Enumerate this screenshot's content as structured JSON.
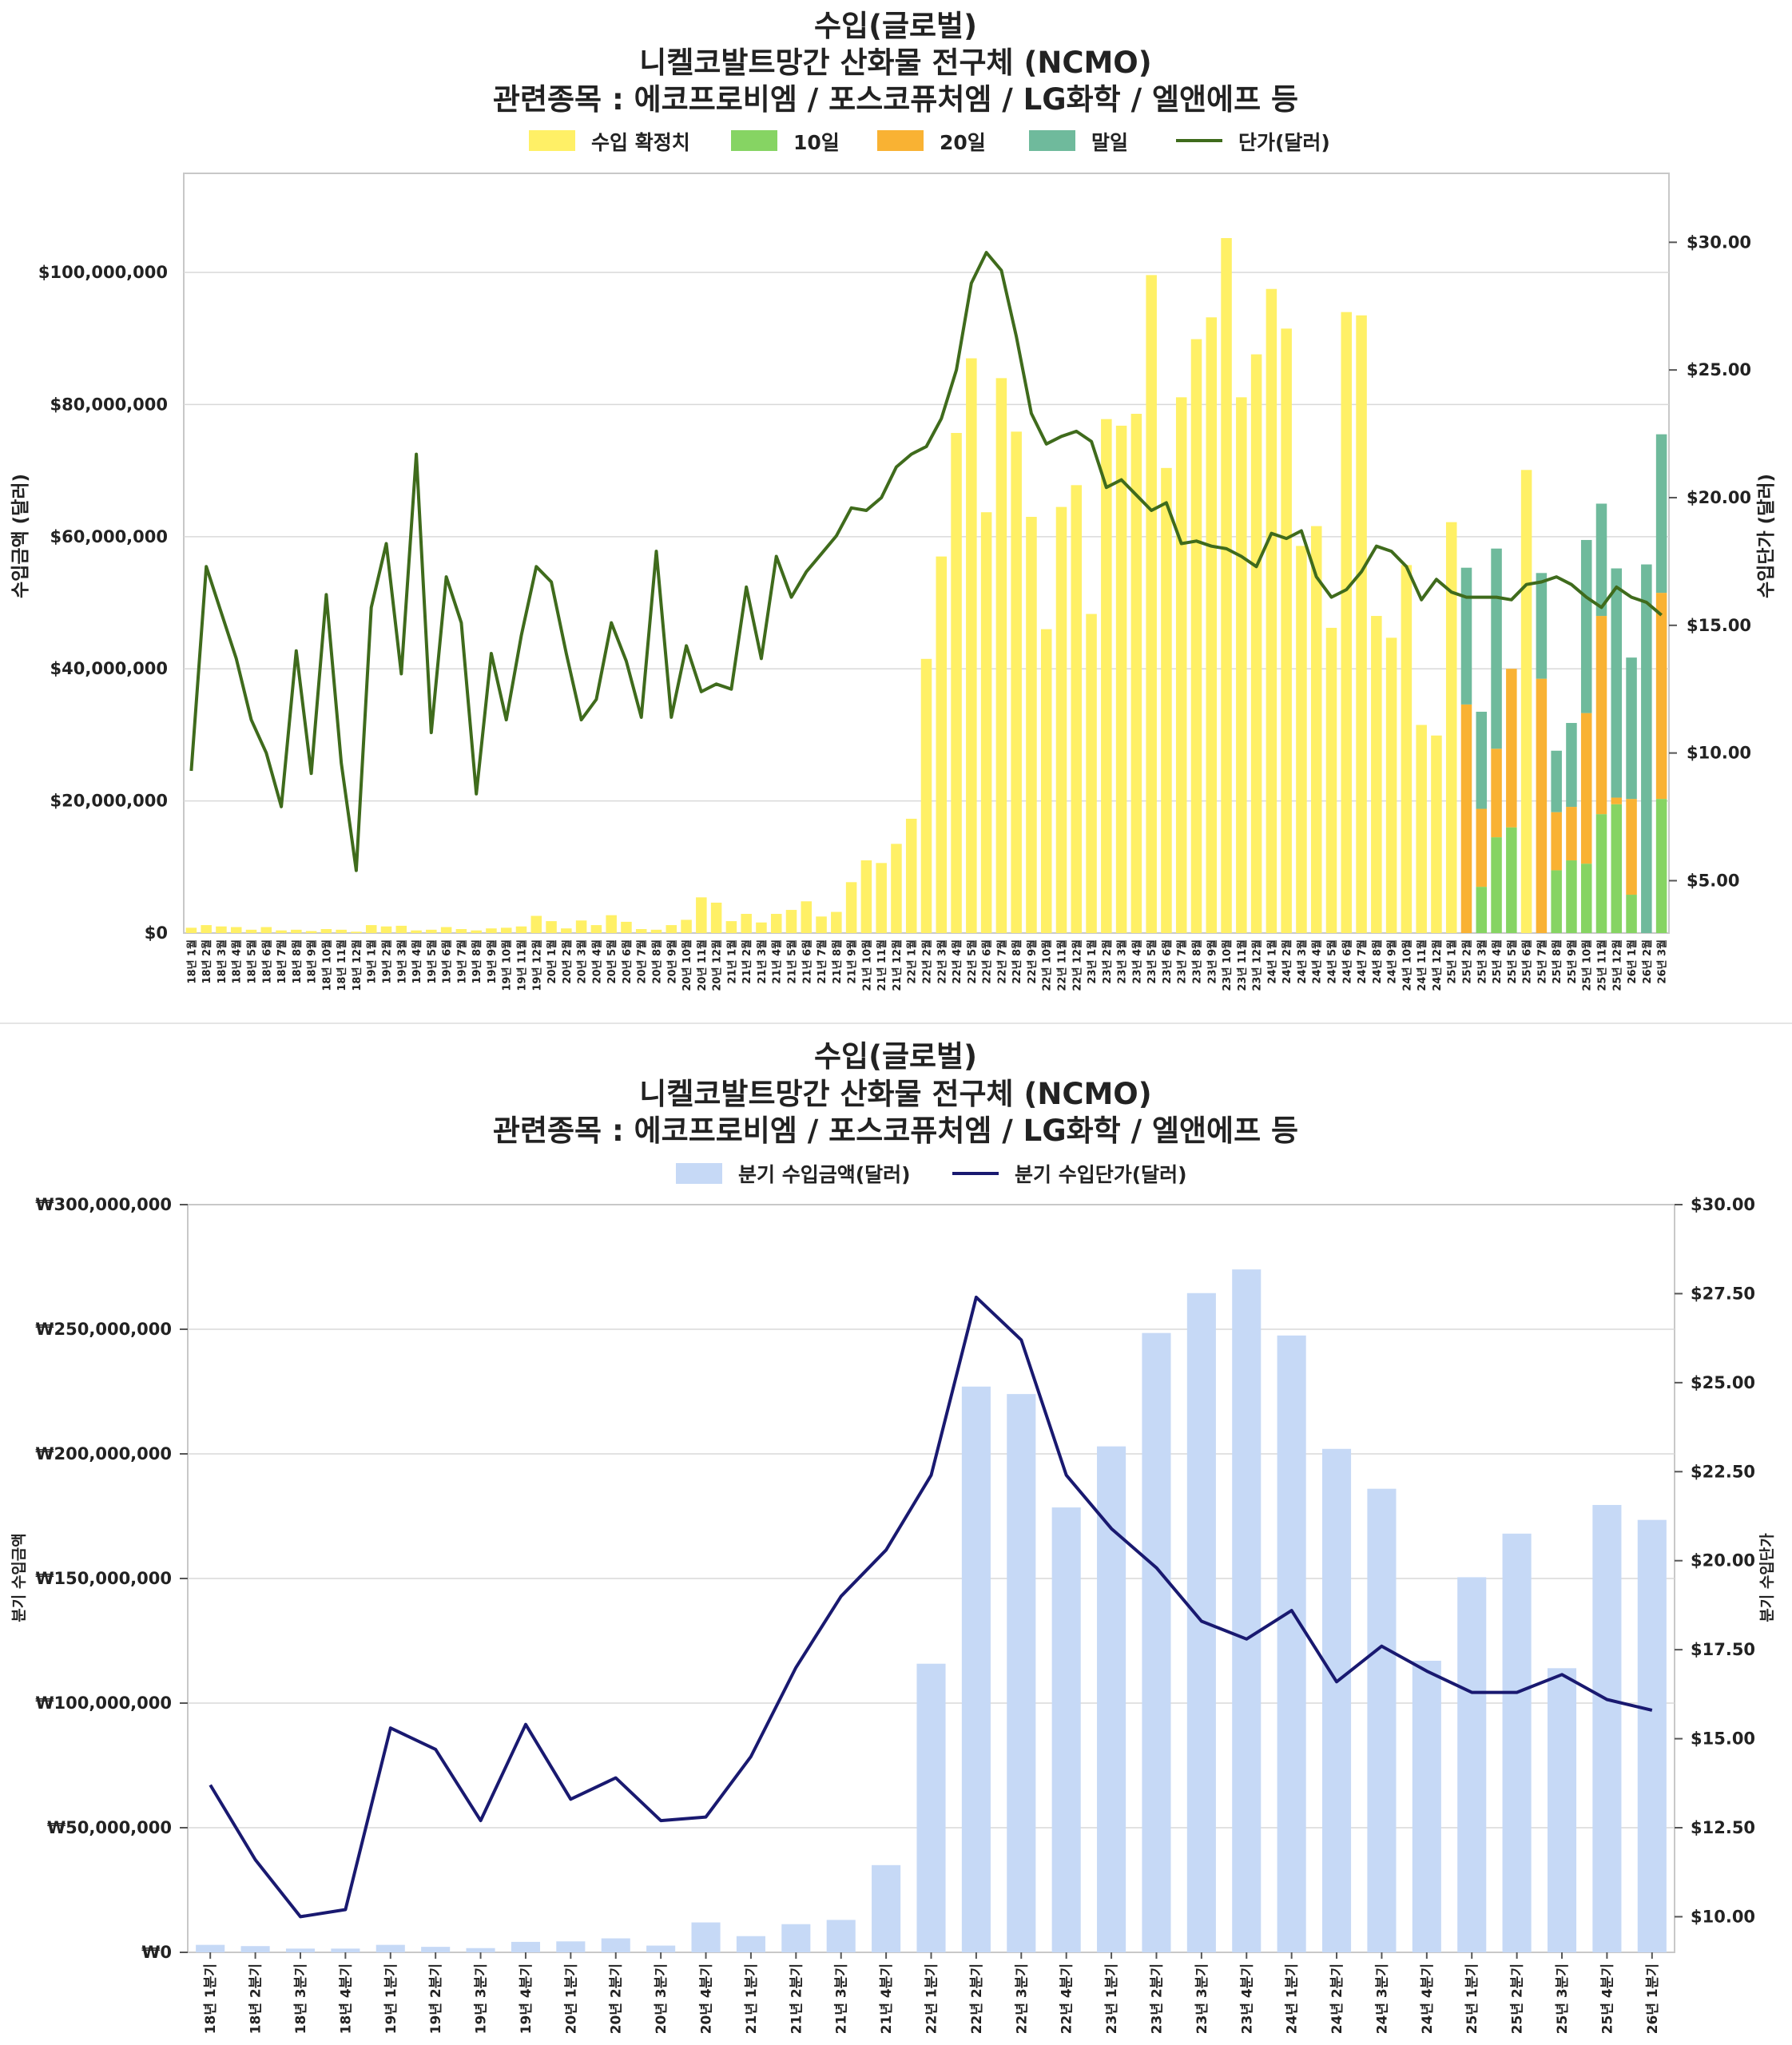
{
  "colors": {
    "confirmed": "#fff066",
    "day10": "#86d463",
    "day20": "#f9b233",
    "monthend": "#6fba9c",
    "price1": "#3f6b1c",
    "qbar": "#c6d9f6",
    "qline": "#191970"
  },
  "chart_data": [
    {
      "type": "bar",
      "title_lines": [
        "수입(글로벌)",
        "니켈코발트망간 산화물 전구체 (NCMO)",
        "관련종목 : 에코프로비엠 / 포스코퓨처엠 / LG화학 / 엘앤에프 등"
      ],
      "legend": [
        "수입 확정치",
        "10일",
        "20일",
        "말일",
        "단가(달러)"
      ],
      "ylabel": "수입금액 (달러)",
      "y2label": "수입단가 (달러)",
      "ylim": [
        0,
        115000000
      ],
      "y2lim": [
        2.95,
        32.7
      ],
      "yticks": [
        "$0",
        "$20,000,000",
        "$40,000,000",
        "$60,000,000",
        "$80,000,000",
        "$100,000,000"
      ],
      "y2ticks": [
        "$5.00",
        "$10.00",
        "$15.00",
        "$20.00",
        "$25.00",
        "$30.00"
      ],
      "categories": [
        "18년 1월",
        "18년 2월",
        "18년 3월",
        "18년 4월",
        "18년 5월",
        "18년 6월",
        "18년 7월",
        "18년 8월",
        "18년 9월",
        "18년 10월",
        "18년 11월",
        "18년 12월",
        "19년 1월",
        "19년 2월",
        "19년 3월",
        "19년 4월",
        "19년 5월",
        "19년 6월",
        "19년 7월",
        "19년 8월",
        "19년 9월",
        "19년 10월",
        "19년 11월",
        "19년 12월",
        "20년 1월",
        "20년 2월",
        "20년 3월",
        "20년 4월",
        "20년 5월",
        "20년 6월",
        "20년 7월",
        "20년 8월",
        "20년 9월",
        "20년 10월",
        "20년 11월",
        "20년 12월",
        "21년 1월",
        "21년 2월",
        "21년 3월",
        "21년 4월",
        "21년 5월",
        "21년 6월",
        "21년 7월",
        "21년 8월",
        "21년 9월",
        "21년 10월",
        "21년 11월",
        "21년 12월",
        "22년 1월",
        "22년 2월",
        "22년 3월",
        "22년 4월",
        "22년 5월",
        "22년 6월",
        "22년 7월",
        "22년 8월",
        "22년 9월",
        "22년 10월",
        "22년 11월",
        "22년 12월",
        "23년 1월",
        "23년 2월",
        "23년 3월",
        "23년 4월",
        "23년 5월",
        "23년 6월",
        "23년 7월",
        "23년 8월",
        "23년 9월",
        "23년 10월",
        "23년 11월",
        "23년 12월",
        "24년 1월",
        "24년 2월",
        "24년 3월",
        "24년 4월",
        "24년 5월",
        "24년 6월",
        "24년 7월",
        "24년 8월",
        "24년 9월",
        "24년 10월",
        "24년 11월",
        "24년 12월",
        "25년 1월",
        "25년 2월",
        "25년 3월",
        "25년 4월",
        "25년 5월",
        "25년 6월",
        "25년 7월",
        "25년 8월",
        "25년 9월",
        "25년 10월",
        "25년 11월",
        "25년 12월",
        "26년 1월",
        "26년 2월",
        "26년 3월"
      ],
      "series": [
        {
          "name": "수입 확정치",
          "values": [
            800000,
            1200000,
            1000000,
            900000,
            500000,
            900000,
            400000,
            500000,
            300000,
            600000,
            500000,
            200000,
            1200000,
            1000000,
            1100000,
            400000,
            500000,
            900000,
            600000,
            400000,
            700000,
            800000,
            1000000,
            2600000,
            1800000,
            700000,
            1900000,
            1200000,
            2700000,
            1700000,
            600000,
            500000,
            1200000,
            2000000,
            5400000,
            4600000,
            1800000,
            2900000,
            1600000,
            2900000,
            3500000,
            4800000,
            2500000,
            3200000,
            7700000,
            11000000,
            10600000,
            13500000,
            17300000,
            41500000,
            57000000,
            75700000,
            87000000,
            63700000,
            84000000,
            75900000,
            63000000,
            46000000,
            64500000,
            67800000,
            48300000,
            77800000,
            76800000,
            78600000,
            99600000,
            70400000,
            81100000,
            89900000,
            93200000,
            105200000,
            81100000,
            87600000,
            97500000,
            91500000,
            58600000,
            61600000,
            46200000,
            94000000,
            93500000,
            48000000,
            44700000,
            55700000,
            31500000,
            29900000,
            62200000,
            0,
            0,
            0,
            0,
            70100000,
            0,
            0,
            0,
            0,
            0,
            0,
            0,
            0,
            0
          ]
        },
        {
          "name": "10일",
          "values": [
            0,
            0,
            0,
            0,
            0,
            0,
            0,
            0,
            0,
            0,
            0,
            0,
            0,
            0,
            0,
            0,
            0,
            0,
            0,
            0,
            0,
            0,
            0,
            0,
            0,
            0,
            0,
            0,
            0,
            0,
            0,
            0,
            0,
            0,
            0,
            0,
            0,
            0,
            0,
            0,
            0,
            0,
            0,
            0,
            0,
            0,
            0,
            0,
            0,
            0,
            0,
            0,
            0,
            0,
            0,
            0,
            0,
            0,
            0,
            0,
            0,
            0,
            0,
            0,
            0,
            0,
            0,
            0,
            0,
            0,
            0,
            0,
            0,
            0,
            0,
            0,
            0,
            0,
            0,
            0,
            0,
            0,
            0,
            0,
            0,
            0,
            7000000,
            14500000,
            16000000,
            0,
            0,
            9500000,
            11000000,
            10500000,
            18000000,
            19500000,
            5800000,
            0,
            20300000
          ]
        },
        {
          "name": "20일",
          "values": [
            0,
            0,
            0,
            0,
            0,
            0,
            0,
            0,
            0,
            0,
            0,
            0,
            0,
            0,
            0,
            0,
            0,
            0,
            0,
            0,
            0,
            0,
            0,
            0,
            0,
            0,
            0,
            0,
            0,
            0,
            0,
            0,
            0,
            0,
            0,
            0,
            0,
            0,
            0,
            0,
            0,
            0,
            0,
            0,
            0,
            0,
            0,
            0,
            0,
            0,
            0,
            0,
            0,
            0,
            0,
            0,
            0,
            0,
            0,
            0,
            0,
            0,
            0,
            0,
            0,
            0,
            0,
            0,
            0,
            0,
            0,
            0,
            0,
            0,
            0,
            0,
            0,
            0,
            0,
            0,
            0,
            0,
            0,
            0,
            0,
            34600000,
            11800000,
            13400000,
            24000000,
            0,
            38500000,
            8800000,
            8100000,
            22800000,
            30000000,
            1000000,
            14500000,
            0,
            31200000
          ]
        },
        {
          "name": "말일",
          "values": [
            0,
            0,
            0,
            0,
            0,
            0,
            0,
            0,
            0,
            0,
            0,
            0,
            0,
            0,
            0,
            0,
            0,
            0,
            0,
            0,
            0,
            0,
            0,
            0,
            0,
            0,
            0,
            0,
            0,
            0,
            0,
            0,
            0,
            0,
            0,
            0,
            0,
            0,
            0,
            0,
            0,
            0,
            0,
            0,
            0,
            0,
            0,
            0,
            0,
            0,
            0,
            0,
            0,
            0,
            0,
            0,
            0,
            0,
            0,
            0,
            0,
            0,
            0,
            0,
            0,
            0,
            0,
            0,
            0,
            0,
            0,
            0,
            0,
            0,
            0,
            0,
            0,
            0,
            0,
            0,
            0,
            0,
            0,
            0,
            0,
            20700000,
            14700000,
            30300000,
            0,
            0,
            16000000,
            9300000,
            12700000,
            26200000,
            17000000,
            34700000,
            21400000,
            55800000,
            24000000
          ]
        },
        {
          "name": "단가(달러)",
          "values": [
            9.3,
            17.3,
            15.5,
            13.7,
            11.3,
            10.0,
            7.9,
            14.0,
            9.2,
            16.2,
            9.6,
            5.4,
            15.7,
            18.2,
            13.1,
            21.7,
            10.8,
            16.9,
            15.1,
            8.4,
            13.9,
            11.3,
            14.6,
            17.3,
            16.7,
            13.9,
            11.3,
            12.1,
            15.1,
            13.6,
            11.4,
            17.9,
            11.4,
            14.2,
            12.4,
            12.7,
            12.5,
            16.5,
            13.7,
            17.7,
            16.1,
            17.1,
            17.8,
            18.5,
            19.6,
            19.5,
            20.0,
            21.2,
            21.7,
            22.0,
            23.1,
            25.0,
            28.4,
            29.6,
            28.9,
            26.3,
            23.3,
            22.1,
            22.4,
            22.6,
            22.2,
            20.4,
            20.7,
            20.1,
            19.5,
            19.8,
            18.2,
            18.3,
            18.1,
            18.0,
            17.7,
            17.3,
            18.6,
            18.4,
            18.7,
            16.9,
            16.1,
            16.4,
            17.1,
            18.1,
            17.9,
            17.3,
            16.0,
            16.8,
            16.3,
            16.1,
            16.1,
            16.1,
            16.0,
            16.6,
            16.7,
            16.9,
            16.6,
            16.1,
            15.7,
            16.5,
            16.1,
            15.9,
            15.4
          ]
        }
      ]
    },
    {
      "type": "bar",
      "title_lines": [
        "수입(글로벌)",
        "니켈코발트망간 산화물 전구체 (NCMO)",
        "관련종목 : 에코프로비엠 / 포스코퓨처엠 / LG화학 / 엘앤에프 등"
      ],
      "legend": [
        "분기 수입금액(달러)",
        "분기 수입단가(달러)"
      ],
      "ylabel": "분기 수입금액",
      "y2label": "분기 수입단가",
      "ylim": [
        0,
        300000000
      ],
      "y2lim": [
        9.0,
        30.0
      ],
      "yticks": [
        "₩0",
        "₩50,000,000",
        "₩100,000,000",
        "₩150,000,000",
        "₩200,000,000",
        "₩250,000,000",
        "₩300,000,000"
      ],
      "y2ticks": [
        "$10.00",
        "$12.50",
        "$15.00",
        "$17.50",
        "$20.00",
        "$22.50",
        "$25.00",
        "$27.50",
        "$30.00"
      ],
      "categories": [
        "18년 1분기",
        "18년 2분기",
        "18년 3분기",
        "18년 4분기",
        "19년 1분기",
        "19년 2분기",
        "19년 3분기",
        "19년 4분기",
        "20년 1분기",
        "20년 2분기",
        "20년 3분기",
        "20년 4분기",
        "21년 1분기",
        "21년 2분기",
        "21년 3분기",
        "21년 4분기",
        "22년 1분기",
        "22년 2분기",
        "22년 3분기",
        "22년 4분기",
        "23년 1분기",
        "23년 2분기",
        "23년 3분기",
        "23년 4분기",
        "24년 1분기",
        "24년 2분기",
        "24년 3분기",
        "24년 4분기",
        "25년 1분기",
        "25년 2분기",
        "25년 3분기",
        "25년 4분기",
        "26년 1분기"
      ],
      "series": [
        {
          "name": "분기 수입금액(달러)",
          "values": [
            3000000,
            2500000,
            1500000,
            1500000,
            3000000,
            2200000,
            1700000,
            4200000,
            4400000,
            5600000,
            2700000,
            12000000,
            6500000,
            11300000,
            13000000,
            35000000,
            115800000,
            227000000,
            224000000,
            178500000,
            203000000,
            248500000,
            264500000,
            274000000,
            247500000,
            202000000,
            186000000,
            117000000,
            150500000,
            168000000,
            114000000,
            179500000,
            173500000
          ]
        },
        {
          "name": "분기 수입단가(달러)",
          "values": [
            13.7,
            11.6,
            10.0,
            10.2,
            15.3,
            14.7,
            12.7,
            15.4,
            13.3,
            13.9,
            12.7,
            12.8,
            14.5,
            17.0,
            19.0,
            20.3,
            22.4,
            27.4,
            26.2,
            22.4,
            20.9,
            19.8,
            18.3,
            17.8,
            18.6,
            16.6,
            17.6,
            16.9,
            16.3,
            16.3,
            16.8,
            16.1,
            15.8
          ]
        }
      ]
    }
  ]
}
